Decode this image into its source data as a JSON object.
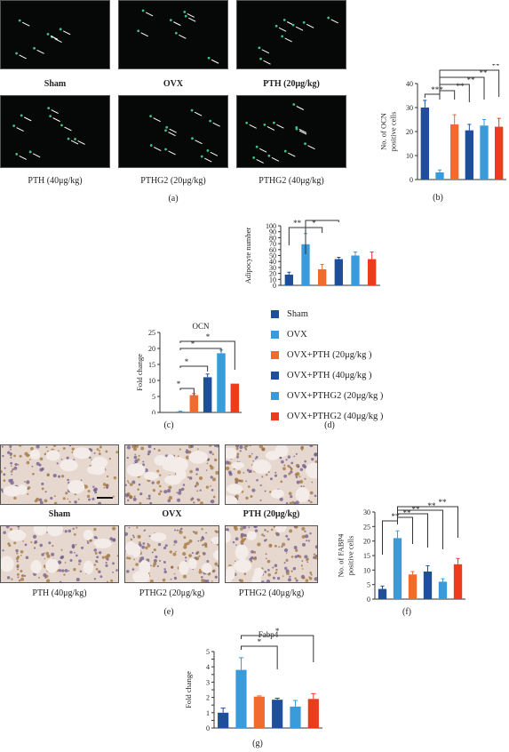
{
  "colors": {
    "sham": "#1f4e9a",
    "ovx": "#3a9bdc",
    "pth20": "#f26a2e",
    "pth40": "#1f4e9a",
    "pthg2_20": "#3a9bdc",
    "pthg2_40": "#ee3b1e"
  },
  "panels": {
    "a": {
      "label": "(a)",
      "captions": [
        "Sham",
        "OVX",
        "PTH (20μg/kg)",
        "PTH (40μg/kg)",
        "PTHG2 (20μg/kg)",
        "PTHG2 (40μg/kg)"
      ]
    },
    "b": {
      "label": "(b)"
    },
    "c": {
      "label": "(c)"
    },
    "d": {
      "label": "(d)"
    },
    "e": {
      "label": "(e)",
      "captions": [
        "Sham",
        "OVX",
        "PTH (20μg/kg)",
        "PTH (40μg/kg)",
        "PTHG2 (20μg/kg)",
        "PTHG2 (40μg/kg)"
      ]
    },
    "f": {
      "label": "(f)"
    },
    "g": {
      "label": "(g)"
    }
  },
  "legend": [
    "Sham",
    "OVX",
    "OVX+PTH (20μg/kg )",
    "OVX+PTH (40μg/kg )",
    "OVX+PTHG2 (20μg/kg )",
    "OVX+PTHG2 (40μg/kg )"
  ],
  "chart_data": [
    {
      "id": "b",
      "type": "bar",
      "categories": [
        "Sham",
        "OVX",
        "OVX+PTH (20μg/kg )",
        "OVX+PTH (40μg/kg )",
        "OVX+PTHG2 (20μg/kg )",
        "OVX+PTHG2 (40μg/kg )"
      ],
      "values": [
        30,
        3,
        23,
        20.5,
        22.5,
        22
      ],
      "errors": [
        3,
        1,
        4,
        2.5,
        2.5,
        3.5
      ],
      "ylabel": "No. of OCN positive cells",
      "ylabel_lines": [
        "No. of OCN",
        "positive cells"
      ],
      "ylim": [
        0,
        40
      ],
      "yticks": [
        0,
        10,
        20,
        30,
        40
      ],
      "significance": [
        "***",
        "**",
        "**",
        "**",
        "**"
      ]
    },
    {
      "id": "d",
      "type": "bar",
      "categories": [
        "Sham",
        "OVX",
        "OVX+PTH (20μg/kg )",
        "OVX+PTH (40μg/kg )",
        "OVX+PTHG2 (20μg/kg )",
        "OVX+PTHG2 (40μg/kg )"
      ],
      "values": [
        18,
        69,
        27,
        44,
        50,
        44
      ],
      "errors": [
        4,
        18,
        8,
        3,
        6,
        12
      ],
      "ylabel": "Adipocyte number",
      "ylabel_lines": [
        "Adipocyte number"
      ],
      "ylim": [
        0,
        100
      ],
      "yticks": [
        0,
        10,
        20,
        30,
        40,
        50,
        60,
        70,
        80,
        90,
        100
      ],
      "significance": [
        "**",
        "*",
        "*"
      ]
    },
    {
      "id": "c",
      "type": "bar",
      "title": "OCN",
      "categories": [
        "Sham",
        "OVX",
        "OVX+PTH (20μg/kg )",
        "OVX+PTH (40μg/kg )",
        "OVX+PTHG2 (20μg/kg )",
        "OVX+PTHG2 (40μg/kg )"
      ],
      "values": [
        0,
        0.3,
        5.4,
        11,
        18.5,
        9
      ],
      "errors": [
        0,
        0.1,
        0.5,
        1,
        1,
        0
      ],
      "ylabel": "Fold change",
      "ylabel_lines": [
        "Fold change"
      ],
      "ylim": [
        0,
        25
      ],
      "yticks": [
        0,
        5,
        10,
        15,
        20,
        25
      ],
      "significance": [
        "*",
        "*",
        "*",
        "*"
      ]
    },
    {
      "id": "f",
      "type": "bar",
      "categories": [
        "Sham",
        "OVX",
        "OVX+PTH (20μg/kg )",
        "OVX+PTH (40μg/kg )",
        "OVX+PTHG2 (20μg/kg )",
        "OVX+PTHG2 (40μg/kg )"
      ],
      "values": [
        3.5,
        21,
        8.5,
        9.5,
        6,
        12
      ],
      "errors": [
        1,
        2.5,
        1,
        2,
        1,
        2
      ],
      "ylabel": "No. of FABP4 positive cells",
      "ylabel_lines": [
        "No. of FABP4",
        "positive cells"
      ],
      "ylim": [
        0,
        30
      ],
      "yticks": [
        0,
        5,
        10,
        15,
        20,
        25,
        30
      ],
      "significance": [
        "**",
        "**",
        "**",
        "**",
        "**"
      ]
    },
    {
      "id": "g",
      "type": "bar",
      "title": "Fabp4",
      "categories": [
        "Sham",
        "OVX",
        "OVX+PTH (20μg/kg )",
        "OVX+PTH (40μg/kg )",
        "OVX+PTHG2 (20μg/kg )",
        "OVX+PTHG2 (40μg/kg )"
      ],
      "values": [
        1,
        3.8,
        2.05,
        1.85,
        1.4,
        1.9
      ],
      "errors": [
        0.3,
        0.8,
        0.05,
        0.1,
        0.4,
        0.35
      ],
      "ylabel": "Fold change",
      "ylabel_lines": [
        "Fold change"
      ],
      "ylim": [
        0,
        5
      ],
      "yticks": [
        0,
        0.5,
        1,
        1.5,
        2,
        2.5,
        3,
        3.5,
        4,
        4.5,
        5
      ],
      "ytick_labels": [
        "0",
        "",
        "1",
        "",
        "2",
        "",
        "3",
        "",
        "4",
        "",
        "5"
      ],
      "significance": [
        "*",
        "*"
      ]
    }
  ]
}
